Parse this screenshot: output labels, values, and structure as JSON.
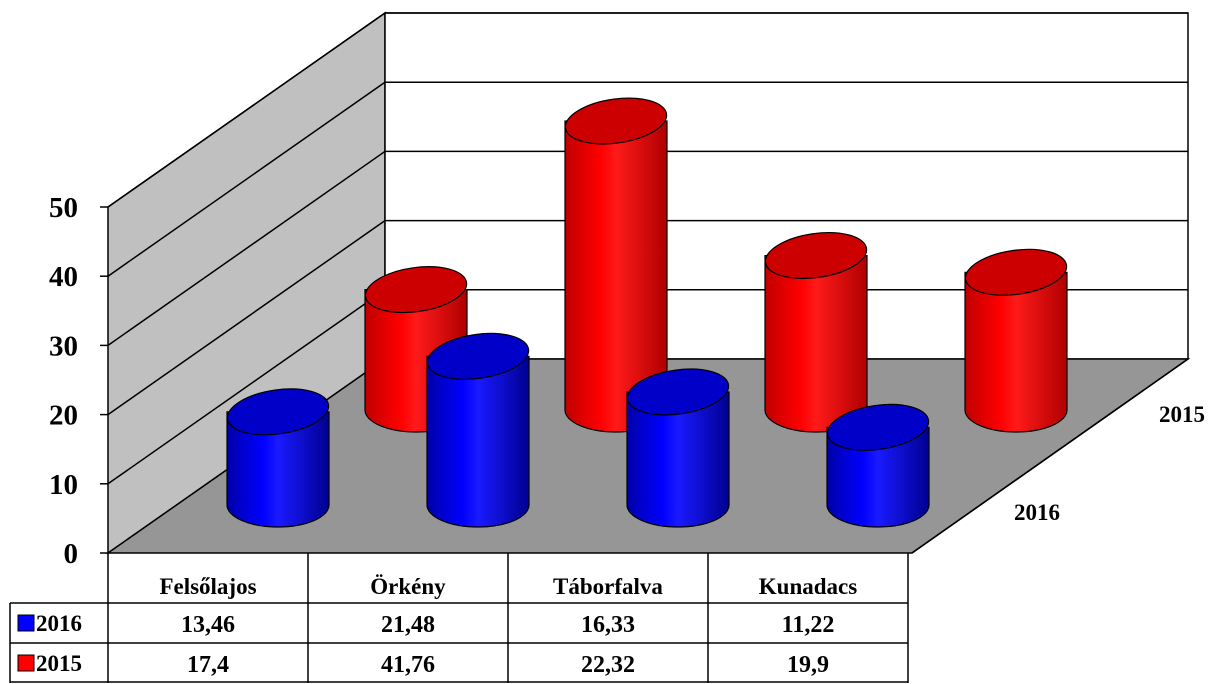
{
  "chart_data": {
    "type": "bar",
    "style": "3d-cylinder",
    "categories": [
      "Felsőlajos",
      "Örkény",
      "Táborfalva",
      "Kunadacs"
    ],
    "series": [
      {
        "name": "2016",
        "values": [
          13.46,
          21.48,
          16.33,
          11.22
        ],
        "color": "#0000ff"
      },
      {
        "name": "2015",
        "values": [
          17.4,
          41.76,
          22.32,
          19.9
        ],
        "color": "#ff0000"
      }
    ],
    "ylim": [
      0,
      50
    ],
    "yticks": [
      "0",
      "10",
      "20",
      "30",
      "40",
      "50"
    ],
    "depth_labels": [
      "2016",
      "2015"
    ],
    "grid": true,
    "data_table": true
  },
  "colors": {
    "wall": "#c0c0c0",
    "floor": "#969696",
    "series_2016": "#0000ff",
    "series_2015": "#ff0000"
  }
}
